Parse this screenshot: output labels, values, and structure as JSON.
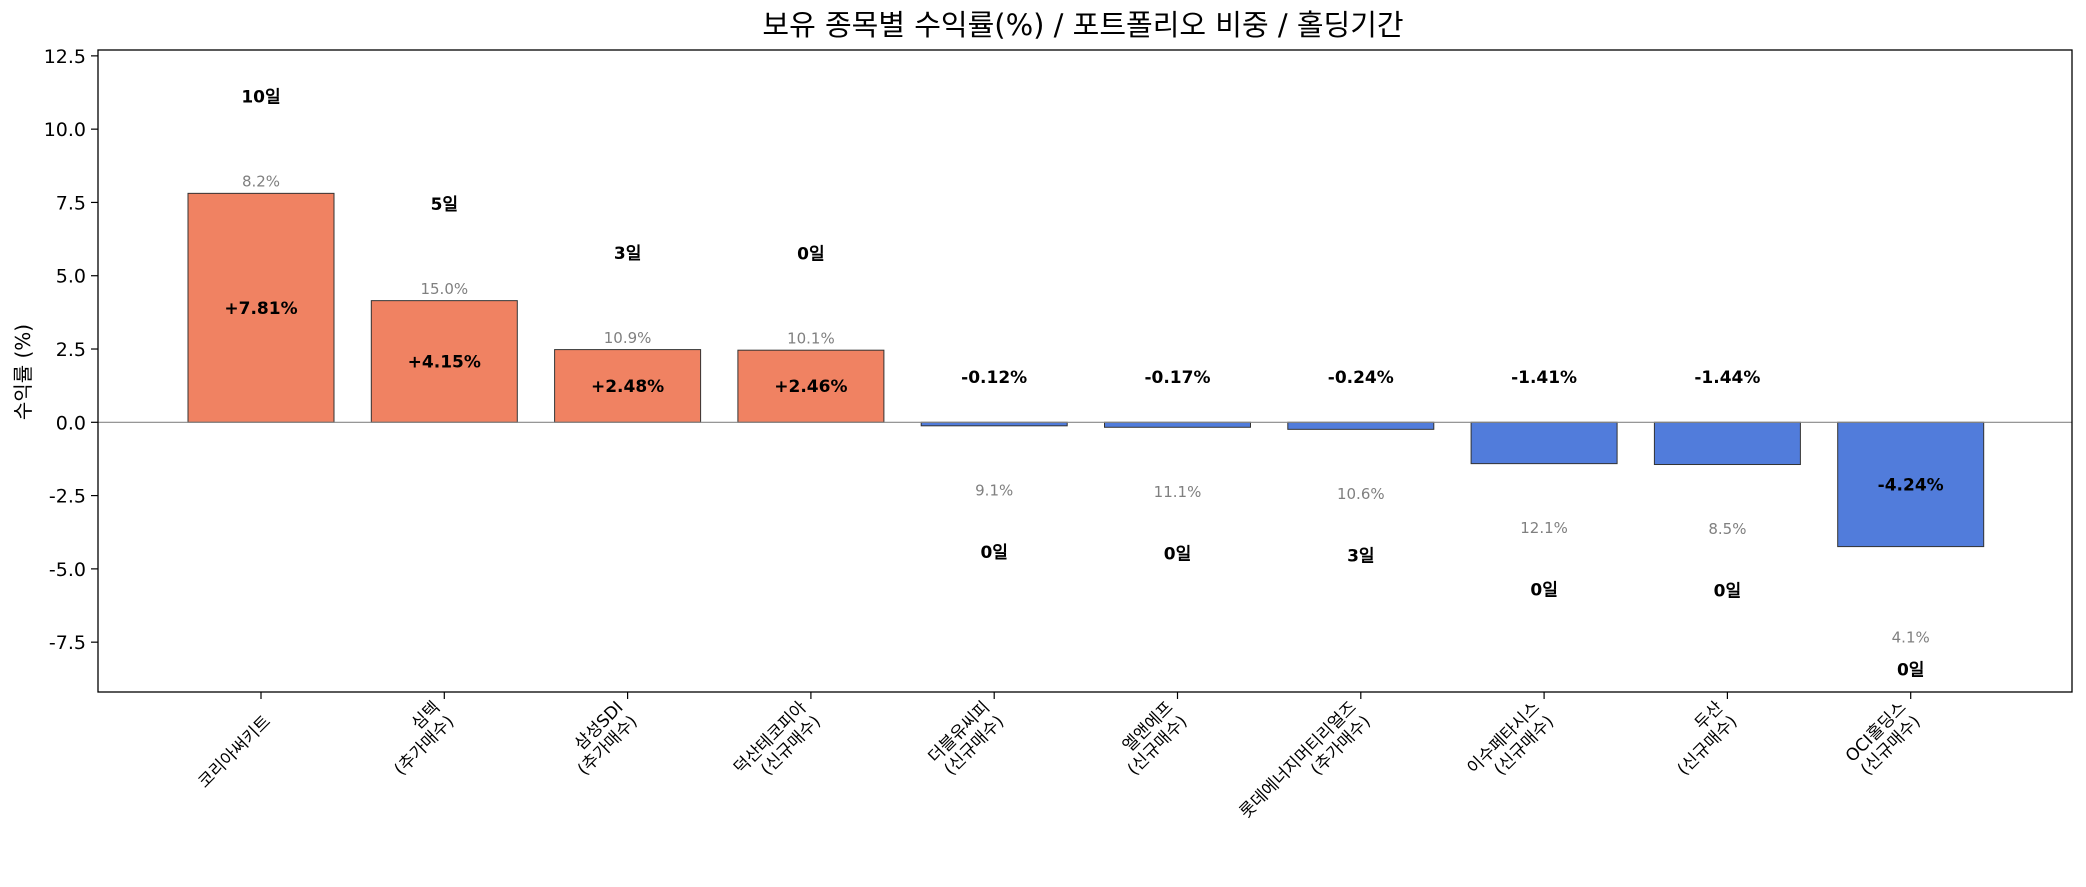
{
  "chart_data": {
    "type": "bar",
    "title": "보유 종목별 수익률(%) / 포트폴리오 비중 / 홀딩기간",
    "xlabel": "",
    "ylabel": "수익률 (%)",
    "ylim": [
      -9.2,
      12.7
    ],
    "yticks": [
      -7.5,
      -5.0,
      -2.5,
      0.0,
      2.5,
      5.0,
      7.5,
      10.0,
      12.5
    ],
    "ytick_labels": [
      "-7.5",
      "-5.0",
      "-2.5",
      "0.0",
      "2.5",
      "5.0",
      "7.5",
      "10.0",
      "12.5"
    ],
    "grid": false,
    "zero_line": true,
    "colors": {
      "positive": "#f08262",
      "negative": "#517cdb",
      "edge": "#333333",
      "weight_text": "#808080",
      "zero_line": "#888888"
    },
    "categories": [
      [
        "코리아써키트"
      ],
      [
        "심텍",
        "(추가매수)"
      ],
      [
        "삼성SDI",
        "(추가매수)"
      ],
      [
        "덕산테코피아",
        "(신규매수)"
      ],
      [
        "더블유씨피",
        "(신규매수)"
      ],
      [
        "엘앤에프",
        "(신규매수)"
      ],
      [
        "롯데에너지머티리얼즈",
        "(추가매수)"
      ],
      [
        "이수페타시스",
        "(신규매수)"
      ],
      [
        "두산",
        "(신규매수)"
      ],
      [
        "OCI홀딩스",
        "(신규매수)"
      ]
    ],
    "values": [
      7.81,
      4.15,
      2.48,
      2.46,
      -0.12,
      -0.17,
      -0.24,
      -1.41,
      -1.44,
      -4.24
    ],
    "return_labels": [
      "+7.81%",
      "+4.15%",
      "+2.48%",
      "+2.46%",
      "-0.12%",
      "-0.17%",
      "-0.24%",
      "-1.41%",
      "-1.44%",
      "-4.24%"
    ],
    "weight_labels": [
      "8.2%",
      "15.0%",
      "10.9%",
      "10.1%",
      "9.1%",
      "11.1%",
      "10.6%",
      "12.1%",
      "8.5%",
      "4.1%"
    ],
    "holding_labels": [
      "10일",
      "5일",
      "3일",
      "0일",
      "0일",
      "0일",
      "3일",
      "0일",
      "0일",
      "0일"
    ]
  }
}
